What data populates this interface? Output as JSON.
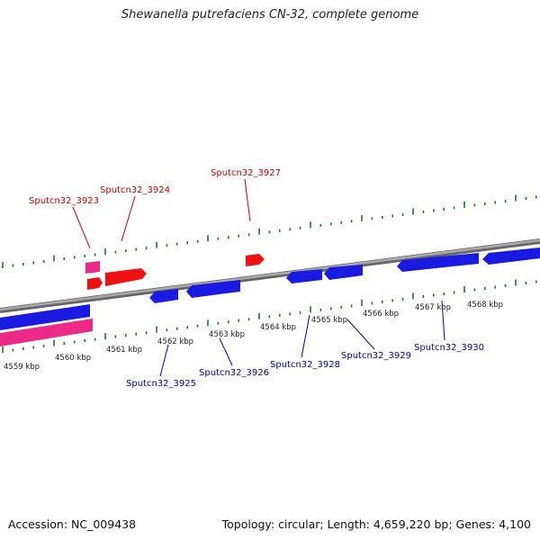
{
  "title": "Shewanella putrefaciens CN-32, complete genome",
  "footer": {
    "accession": "Accession: NC_009438",
    "summary": "Topology: circular; Length: 4,659,220 bp; Genes: 4,100"
  },
  "colors": {
    "forward_gene": "#ee1111",
    "reverse_gene": "#1a1ae0",
    "pink_feature": "#ee2a88",
    "backbone": "#888888",
    "ticks": "#1a7a1a",
    "forward_label": "#cc0000",
    "reverse_label": "#0000aa"
  },
  "scale_labels": [
    "4559 kbp",
    "4560 kbp",
    "4561 kbp",
    "4562 kbp",
    "4563 kbp",
    "4564 kbp",
    "4565 kbp",
    "4566 kbp",
    "4567 kbp",
    "4568 kbp"
  ],
  "forward_labels": [
    "Sputcn32_3923",
    "Sputcn32_3924",
    "Sputcn32_3927"
  ],
  "reverse_labels": [
    "Sputcn32_3925",
    "Sputcn32_3926",
    "Sputcn32_3928",
    "Sputcn32_3929",
    "Sputcn32_3930"
  ]
}
